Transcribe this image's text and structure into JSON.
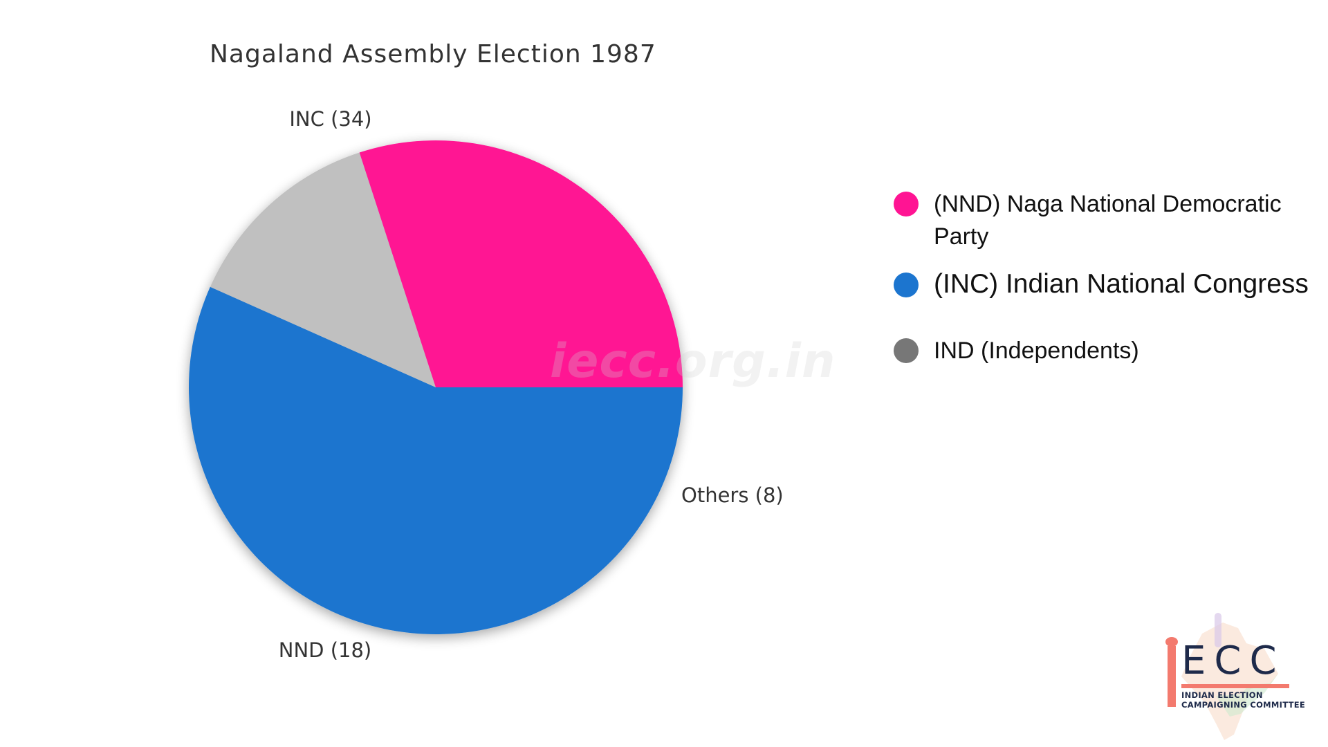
{
  "chart_data": {
    "type": "pie",
    "title": "Nagaland Assembly Election 1987",
    "slices": [
      {
        "name": "INC",
        "value": 34,
        "label": "INC (34)",
        "color": "#1c75cf"
      },
      {
        "name": "Others",
        "value": 8,
        "label": "Others (8)",
        "color": "#c0c0c0"
      },
      {
        "name": "NND",
        "value": 18,
        "label": "NND (18)",
        "color": "#ff1493"
      }
    ],
    "start_angle_deg": 0,
    "direction": "clockwise",
    "legend_position": "right",
    "legend": [
      {
        "label": "(NND) Naga National Democratic Party",
        "color": "#ff1493"
      },
      {
        "label": "(INC) Indian National Congress",
        "color": "#1c75cf"
      },
      {
        "label": "IND (Independents)",
        "color": "#777777"
      }
    ]
  },
  "watermark": "iecc.org.in",
  "logo": {
    "letters": "ECC",
    "line1": "INDIAN ELECTION",
    "line2": "CAMPAIGNING COMMITTEE",
    "accent_color": "#f37a6e",
    "text_color": "#1e2a4a"
  }
}
